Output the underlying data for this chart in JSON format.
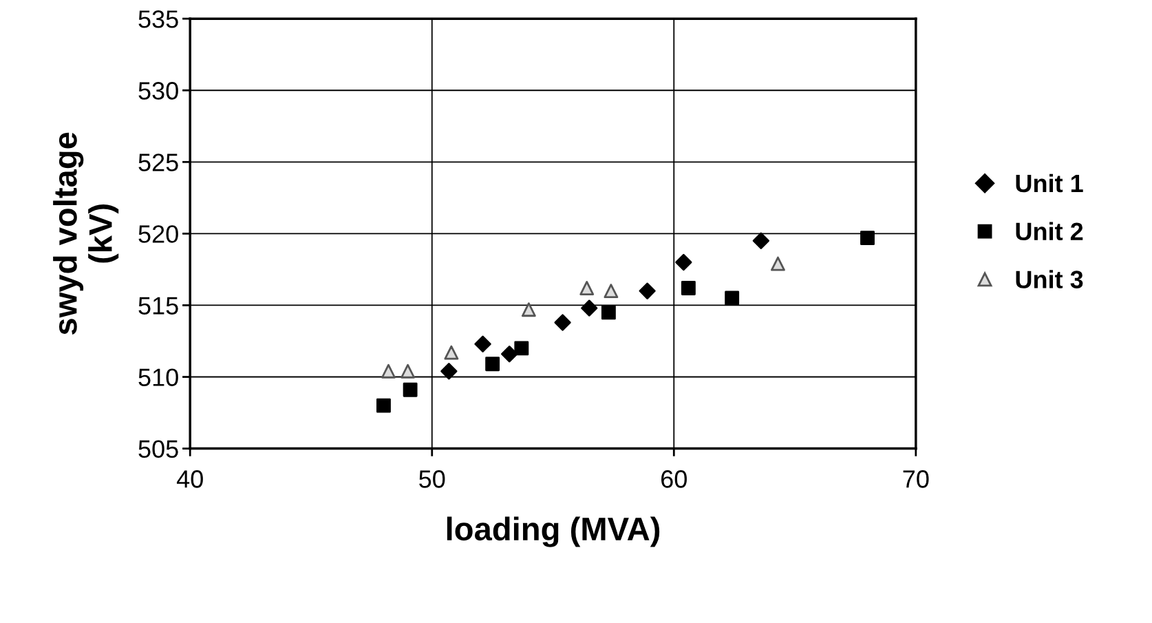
{
  "chart_data": {
    "type": "scatter",
    "xlabel": "loading (MVA)",
    "ylabel": "swyd voltage\n(kV)",
    "xlim": [
      40,
      70
    ],
    "xticks": [
      40,
      50,
      60,
      70
    ],
    "ylim": [
      505,
      535
    ],
    "yticks": [
      505,
      510,
      515,
      520,
      525,
      530,
      535
    ],
    "grid": true,
    "legend": "right",
    "series": [
      {
        "name": "Unit 1",
        "color": "#000000",
        "marker": "diamond",
        "x": [
          50.7,
          52.1,
          53.2,
          55.4,
          56.5,
          58.9,
          60.4,
          63.6
        ],
        "values": [
          510.4,
          512.3,
          511.6,
          513.8,
          514.8,
          516.0,
          518.0,
          519.5
        ]
      },
      {
        "name": "Unit 2",
        "color": "#000000",
        "marker": "square",
        "x": [
          48.0,
          49.1,
          52.5,
          53.7,
          57.3,
          60.6,
          62.4,
          68.0
        ],
        "values": [
          508.0,
          509.1,
          510.9,
          512.0,
          514.5,
          516.2,
          515.5,
          519.7
        ]
      },
      {
        "name": "Unit 3",
        "color": "#555555",
        "marker": "triangle",
        "x": [
          48.2,
          49.0,
          50.8,
          54.0,
          56.4,
          57.4,
          64.3
        ],
        "values": [
          510.4,
          510.4,
          511.7,
          514.7,
          516.2,
          516.0,
          517.9
        ]
      }
    ]
  }
}
